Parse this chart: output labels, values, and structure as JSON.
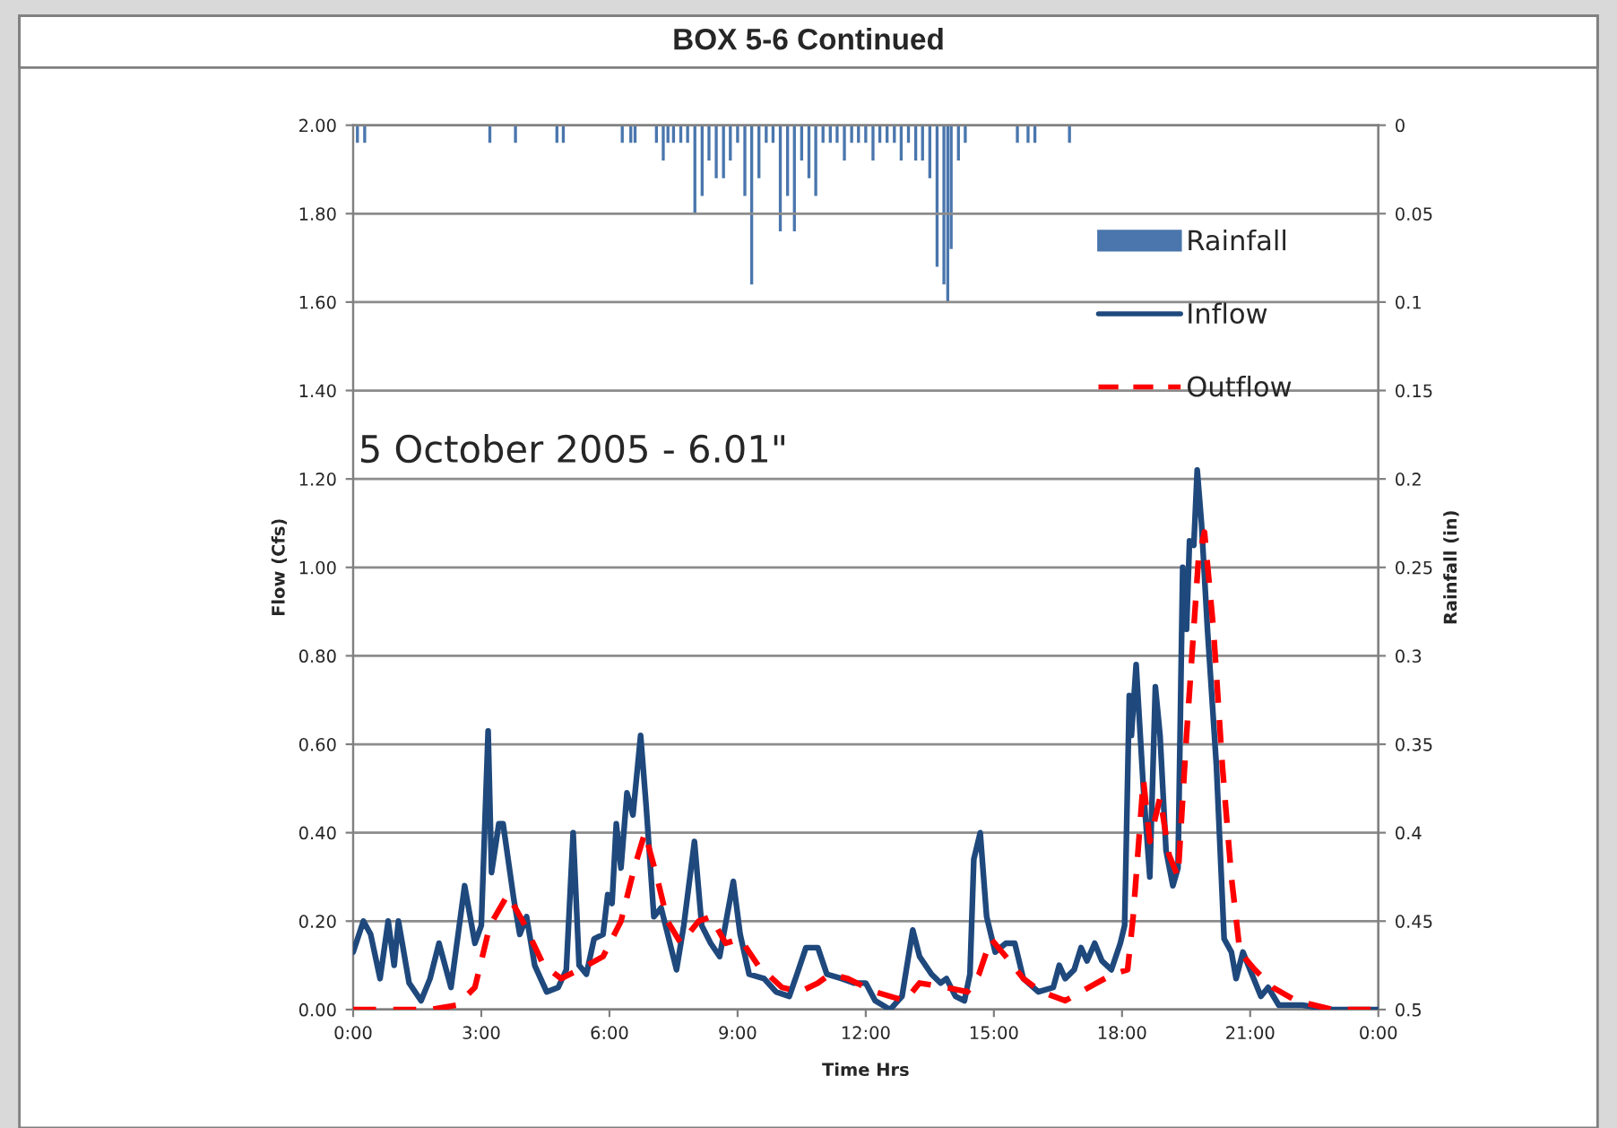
{
  "chart_data": {
    "type": "line",
    "title": "BOX 5-6 Continued",
    "xlabel": "Time Hrs",
    "ylabel": "Flow (Cfs)",
    "y2label": "Rainfall (in)",
    "annotations": [
      "5 October 2005 - 6.01\""
    ],
    "xlim": [
      0,
      24
    ],
    "xticks": [
      {
        "value": 0,
        "label": "0:00"
      },
      {
        "value": 3,
        "label": "3:00"
      },
      {
        "value": 6,
        "label": "6:00"
      },
      {
        "value": 9,
        "label": "9:00"
      },
      {
        "value": 12,
        "label": "12:00"
      },
      {
        "value": 15,
        "label": "15:00"
      },
      {
        "value": 18,
        "label": "18:00"
      },
      {
        "value": 21,
        "label": "21:00"
      },
      {
        "value": 24,
        "label": "0:00"
      }
    ],
    "ylim": [
      0,
      2
    ],
    "yticks": [
      {
        "value": 0,
        "label": "0.00"
      },
      {
        "value": 0.2,
        "label": "0.20"
      },
      {
        "value": 0.4,
        "label": "0.40"
      },
      {
        "value": 0.6,
        "label": "0.60"
      },
      {
        "value": 0.8,
        "label": "0.80"
      },
      {
        "value": 1.0,
        "label": "1.00"
      },
      {
        "value": 1.2,
        "label": "1.20"
      },
      {
        "value": 1.4,
        "label": "1.40"
      },
      {
        "value": 1.6,
        "label": "1.60"
      },
      {
        "value": 1.8,
        "label": "1.80"
      },
      {
        "value": 2.0,
        "label": "2.00"
      }
    ],
    "y2lim": [
      0.5,
      0
    ],
    "y2ticks": [
      0,
      0.05,
      0.1,
      0.15,
      0.2,
      0.25,
      0.3,
      0.35,
      0.4,
      0.45,
      0.5
    ],
    "grid": "y",
    "legend": "top right",
    "series": [
      {
        "name": "Rainfall",
        "type": "bar",
        "axis": "y2",
        "color": "#4a76ad",
        "x": [
          0.1,
          0.27,
          3.2,
          3.8,
          4.77,
          4.92,
          6.3,
          6.5,
          6.6,
          7.1,
          7.26,
          7.37,
          7.5,
          7.67,
          7.83,
          8.0,
          8.17,
          8.33,
          8.5,
          8.67,
          8.83,
          9.0,
          9.17,
          9.33,
          9.5,
          9.67,
          9.83,
          10.0,
          10.17,
          10.33,
          10.5,
          10.67,
          10.83,
          11.0,
          11.17,
          11.33,
          11.5,
          11.67,
          11.83,
          12.0,
          12.17,
          12.33,
          12.5,
          12.67,
          12.83,
          13.0,
          13.17,
          13.33,
          13.5,
          13.67,
          13.83,
          13.92,
          14.0,
          14.17,
          14.33,
          15.55,
          15.8,
          15.96,
          16.77
        ],
        "values": [
          0.01,
          0.01,
          0.01,
          0.01,
          0.01,
          0.01,
          0.01,
          0.01,
          0.01,
          0.01,
          0.02,
          0.01,
          0.01,
          0.01,
          0.01,
          0.05,
          0.04,
          0.02,
          0.03,
          0.03,
          0.02,
          0.01,
          0.04,
          0.09,
          0.03,
          0.01,
          0.01,
          0.06,
          0.04,
          0.06,
          0.02,
          0.03,
          0.04,
          0.01,
          0.01,
          0.01,
          0.02,
          0.01,
          0.01,
          0.01,
          0.02,
          0.01,
          0.01,
          0.01,
          0.02,
          0.01,
          0.02,
          0.02,
          0.03,
          0.08,
          0.09,
          0.1,
          0.07,
          0.02,
          0.01,
          0.01,
          0.01,
          0.01,
          0.01
        ]
      },
      {
        "name": "Inflow",
        "color": "#1f497d",
        "line_style": "solid",
        "x": [
          0,
          0.24,
          0.41,
          0.63,
          0.82,
          0.96,
          1.06,
          1.31,
          1.59,
          1.8,
          2.01,
          2.29,
          2.61,
          2.85,
          3.0,
          3.16,
          3.24,
          3.41,
          3.51,
          3.76,
          3.9,
          4.06,
          4.25,
          4.53,
          4.8,
          4.99,
          5.15,
          5.29,
          5.46,
          5.64,
          5.85,
          5.96,
          6.06,
          6.16,
          6.27,
          6.41,
          6.55,
          6.73,
          6.86,
          7.04,
          7.21,
          7.39,
          7.57,
          7.74,
          7.99,
          8.16,
          8.37,
          8.58,
          8.9,
          9.06,
          9.27,
          9.62,
          9.9,
          10.21,
          10.39,
          10.6,
          10.88,
          11.09,
          11.44,
          11.72,
          12.0,
          12.22,
          12.57,
          12.85,
          13.1,
          13.26,
          13.54,
          13.75,
          13.89,
          14.1,
          14.31,
          14.44,
          14.53,
          14.68,
          14.83,
          15.03,
          15.28,
          15.49,
          15.69,
          16.04,
          16.39,
          16.53,
          16.67,
          16.88,
          17.04,
          17.18,
          17.36,
          17.53,
          17.75,
          17.96,
          18.06,
          18.17,
          18.22,
          18.33,
          18.5,
          18.65,
          18.78,
          18.89,
          19.03,
          19.19,
          19.31,
          19.42,
          19.51,
          19.58,
          19.68,
          19.76,
          19.86,
          20.0,
          20.21,
          20.39,
          20.56,
          20.67,
          20.83,
          21.04,
          21.25,
          21.42,
          21.67,
          22.22,
          22.92,
          24
        ],
        "values": [
          0.13,
          0.2,
          0.17,
          0.07,
          0.2,
          0.1,
          0.2,
          0.06,
          0.02,
          0.07,
          0.15,
          0.05,
          0.28,
          0.15,
          0.19,
          0.63,
          0.31,
          0.42,
          0.42,
          0.25,
          0.17,
          0.21,
          0.1,
          0.04,
          0.05,
          0.09,
          0.4,
          0.1,
          0.08,
          0.16,
          0.17,
          0.26,
          0.24,
          0.42,
          0.32,
          0.49,
          0.44,
          0.62,
          0.46,
          0.21,
          0.23,
          0.16,
          0.09,
          0.19,
          0.38,
          0.19,
          0.15,
          0.12,
          0.29,
          0.17,
          0.08,
          0.07,
          0.04,
          0.03,
          0.08,
          0.14,
          0.14,
          0.08,
          0.07,
          0.06,
          0.06,
          0.02,
          0.0,
          0.03,
          0.18,
          0.12,
          0.08,
          0.06,
          0.07,
          0.03,
          0.02,
          0.08,
          0.34,
          0.4,
          0.21,
          0.13,
          0.15,
          0.15,
          0.07,
          0.04,
          0.05,
          0.1,
          0.07,
          0.09,
          0.14,
          0.11,
          0.15,
          0.11,
          0.09,
          0.15,
          0.19,
          0.71,
          0.62,
          0.78,
          0.5,
          0.3,
          0.73,
          0.62,
          0.36,
          0.28,
          0.32,
          1.0,
          0.86,
          1.06,
          1.05,
          1.22,
          1.1,
          0.86,
          0.55,
          0.16,
          0.13,
          0.07,
          0.13,
          0.08,
          0.03,
          0.05,
          0.01,
          0.01,
          0.0,
          0.0
        ]
      },
      {
        "name": "Outflow",
        "color": "#ff0000",
        "line_style": "dashed",
        "x": [
          0,
          1.8,
          2.43,
          2.85,
          3.2,
          3.62,
          3.97,
          4.46,
          4.87,
          5.29,
          5.85,
          6.27,
          6.58,
          6.83,
          7.11,
          7.36,
          7.67,
          8.09,
          8.37,
          8.72,
          9.06,
          9.48,
          10.04,
          10.46,
          10.88,
          11.16,
          11.58,
          12.22,
          12.92,
          13.26,
          13.89,
          14.38,
          14.65,
          14.93,
          15.28,
          15.69,
          16.11,
          16.67,
          17.22,
          17.78,
          18.13,
          18.26,
          18.5,
          18.65,
          18.89,
          19.1,
          19.31,
          19.51,
          19.79,
          19.93,
          20.14,
          20.35,
          20.56,
          20.76,
          21.11,
          21.53,
          22.08,
          22.92,
          24
        ],
        "values": [
          0.0,
          0.0,
          0.01,
          0.05,
          0.19,
          0.26,
          0.2,
          0.1,
          0.07,
          0.09,
          0.12,
          0.2,
          0.32,
          0.4,
          0.3,
          0.2,
          0.15,
          0.2,
          0.21,
          0.15,
          0.16,
          0.1,
          0.05,
          0.04,
          0.06,
          0.08,
          0.07,
          0.04,
          0.02,
          0.06,
          0.05,
          0.04,
          0.08,
          0.16,
          0.12,
          0.07,
          0.04,
          0.02,
          0.05,
          0.08,
          0.09,
          0.21,
          0.52,
          0.38,
          0.48,
          0.35,
          0.3,
          0.62,
          1.02,
          1.08,
          0.86,
          0.55,
          0.3,
          0.13,
          0.09,
          0.05,
          0.02,
          0.0,
          0.0
        ]
      }
    ]
  }
}
